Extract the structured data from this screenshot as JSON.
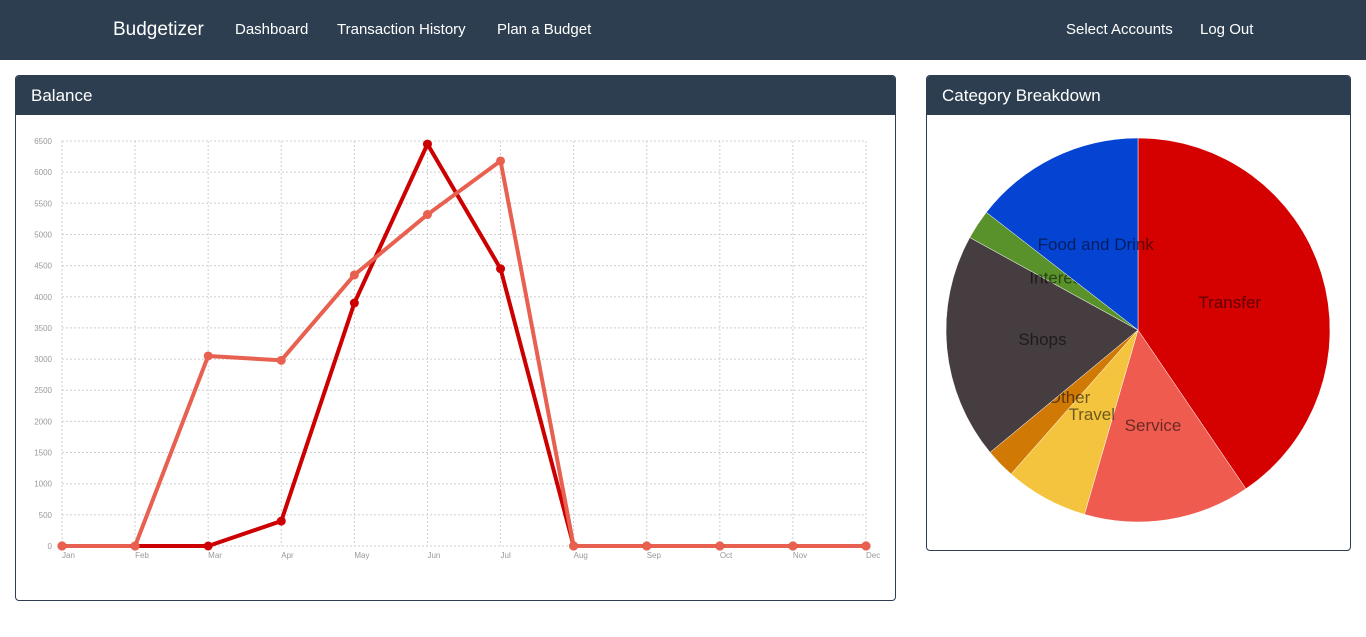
{
  "navbar": {
    "brand": "Budgetizer",
    "links": [
      "Dashboard",
      "Transaction History",
      "Plan a Budget"
    ],
    "right_links": [
      "Select Accounts",
      "Log Out"
    ],
    "background": "#2c3e50"
  },
  "balance_panel": {
    "title": "Balance"
  },
  "category_panel": {
    "title": "Category Breakdown"
  },
  "chart_data": [
    {
      "type": "line",
      "title": "",
      "xlabel": "",
      "ylabel": "",
      "categories": [
        "Jan",
        "Feb",
        "Mar",
        "Apr",
        "May",
        "Jun",
        "Jul",
        "Aug",
        "Sep",
        "Oct",
        "Nov",
        "Dec"
      ],
      "yticks": [
        "0",
        "500",
        "1000",
        "1500",
        "2000",
        "2500",
        "3000",
        "3500",
        "4000",
        "4500",
        "5000",
        "5500",
        "6000",
        "6500"
      ],
      "ylim": [
        0,
        6500
      ],
      "grid": true,
      "series": [
        {
          "color": "#cc0000",
          "values": [
            0,
            0,
            0,
            400,
            3900,
            6450,
            4450,
            0,
            0,
            0,
            0,
            0
          ]
        },
        {
          "color": "#e8604f",
          "values": [
            0,
            0,
            3050,
            2980,
            4350,
            5320,
            6180,
            0,
            0,
            0,
            0,
            0
          ]
        }
      ]
    },
    {
      "type": "pie",
      "title": "",
      "slices": [
        {
          "label": "Transfer",
          "value": 40.5,
          "color": "#d50000"
        },
        {
          "label": "Service",
          "value": 14.0,
          "color": "#f05b4f"
        },
        {
          "label": "Travel",
          "value": 7.0,
          "color": "#f4c43e"
        },
        {
          "label": "Other",
          "value": 2.5,
          "color": "#d17905"
        },
        {
          "label": "Shops",
          "value": 19.0,
          "color": "#453d3f"
        },
        {
          "label": "Interest",
          "value": 2.5,
          "color": "#59922b"
        },
        {
          "label": "Food and Drink",
          "value": 14.5,
          "color": "#0544d3"
        }
      ]
    }
  ]
}
